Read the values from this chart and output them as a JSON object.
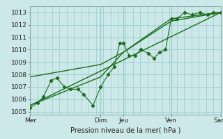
{
  "xlabel": "Pression niveau de la mer( hPa )",
  "bg_color": "#cce8e8",
  "grid_color": "#99cccc",
  "line_color": "#1a6e1a",
  "ylim": [
    1004.75,
    1013.5
  ],
  "yticks": [
    1005,
    1006,
    1007,
    1008,
    1009,
    1010,
    1011,
    1012,
    1013
  ],
  "xlim": [
    0,
    1.0
  ],
  "xtick_positions": [
    0.0,
    0.37,
    0.49,
    0.74,
    1.0
  ],
  "xtick_labels": [
    "Mer",
    "Dim",
    "Jeu",
    "Ven",
    "Sam"
  ],
  "vline_positions": [
    0.0,
    0.37,
    0.49,
    0.74,
    1.0
  ],
  "jagged_x": [
    0.0,
    0.04,
    0.07,
    0.11,
    0.14,
    0.18,
    0.21,
    0.25,
    0.28,
    0.33,
    0.37,
    0.41,
    0.44,
    0.47,
    0.49,
    0.52,
    0.55,
    0.58,
    0.62,
    0.65,
    0.68,
    0.71,
    0.74,
    0.77,
    0.81,
    0.85,
    0.89,
    0.93,
    0.96,
    1.0
  ],
  "jagged_y": [
    1005.3,
    1005.7,
    1006.2,
    1007.5,
    1007.7,
    1007.0,
    1006.8,
    1006.8,
    1006.4,
    1005.5,
    1007.0,
    1008.0,
    1008.6,
    1010.5,
    1010.5,
    1009.5,
    1009.5,
    1010.0,
    1009.7,
    1009.3,
    1009.8,
    1010.0,
    1012.5,
    1012.5,
    1013.0,
    1012.8,
    1013.0,
    1012.8,
    1013.0,
    1013.0
  ],
  "line2_x": [
    0.0,
    0.37,
    0.49,
    0.74,
    1.0
  ],
  "line2_y": [
    1007.8,
    1008.8,
    1009.8,
    1012.3,
    1013.0
  ],
  "line3_x": [
    0.0,
    0.37,
    0.49,
    0.74,
    1.0
  ],
  "line3_y": [
    1005.5,
    1007.8,
    1009.8,
    1012.5,
    1013.0
  ],
  "line1_x": [
    0.0,
    1.0
  ],
  "line1_y": [
    1005.5,
    1013.0
  ],
  "figsize": [
    3.2,
    2.0
  ],
  "dpi": 100
}
